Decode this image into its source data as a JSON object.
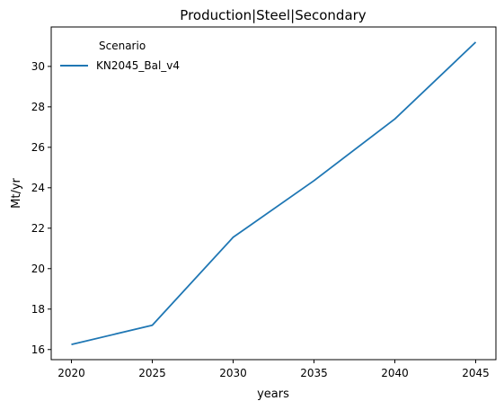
{
  "chart_data": {
    "type": "line",
    "title": "Production|Steel|Secondary",
    "xlabel": "years",
    "ylabel": "Mt/yr",
    "x": [
      2020,
      2025,
      2030,
      2035,
      2040,
      2045
    ],
    "xticks": [
      2020,
      2025,
      2030,
      2035,
      2040,
      2045
    ],
    "yticks": [
      16,
      18,
      20,
      22,
      24,
      26,
      28,
      30
    ],
    "xlim": [
      2018.75,
      2046.25
    ],
    "ylim": [
      15.5,
      31.95
    ],
    "grid": false,
    "legend": {
      "title": "Scenario",
      "placement": "top-left"
    },
    "series": [
      {
        "name": "KN2045_Bal_v4",
        "color": "#1f77b4",
        "values": [
          16.25,
          17.2,
          21.55,
          24.35,
          27.4,
          31.2
        ]
      }
    ]
  }
}
